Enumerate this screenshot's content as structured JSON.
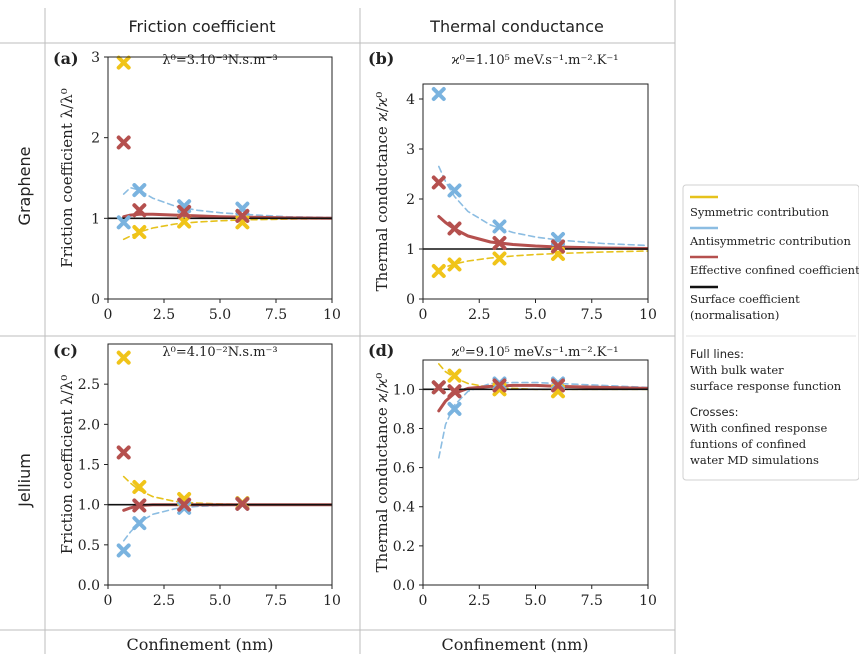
{
  "headers": {
    "columns": [
      "Friction coefficient",
      "Thermal conductance"
    ],
    "rows": [
      "Graphene",
      "Jellium"
    ],
    "xlabel": "Confinement (nm)"
  },
  "colors": {
    "symmetric": "#e6c21c",
    "antisymmetric": "#8cbde2",
    "effective": "#b5504e",
    "surface": "#111111",
    "cross_sym": "#f0c419",
    "cross_anti": "#7ab3df",
    "cross_eff": "#b5504e"
  },
  "legend": {
    "items": [
      {
        "label": "Symmetric contribution",
        "color": "#e6c21c"
      },
      {
        "label": "Antisymmetric contribution",
        "color": "#8cbde2"
      },
      {
        "label": "Effective confined coefficient",
        "color": "#b5504e"
      },
      {
        "label": "Surface coefficient",
        "label2": "(normalisation)",
        "color": "#111111"
      }
    ],
    "full_lines_title": "Full lines:",
    "full_lines_text": [
      "With bulk water",
      "surface response function"
    ],
    "crosses_title": "Crosses:",
    "crosses_text": [
      "With confined response",
      "funtions of confined",
      "water MD simulations"
    ]
  },
  "chart_data": [
    {
      "panel": "(a)",
      "type": "line",
      "title": "λ⁰=3.10⁻³N.s.m⁻³",
      "xlabel": "",
      "ylabel": "Friction coefficient λ/λ⁰",
      "xlim": [
        0,
        10
      ],
      "ylim": [
        0,
        3
      ],
      "xticks": [
        0,
        2.5,
        5,
        7.5,
        10
      ],
      "xticklabels": [
        "0",
        "2.5",
        "5.0",
        "7.5",
        "10"
      ],
      "yticks": [
        0,
        1,
        2,
        3
      ],
      "yticklabels": [
        "0",
        "1",
        "2",
        "3"
      ],
      "series": [
        {
          "name": "Symmetric contribution",
          "color": "#e6c21c",
          "style": "dashed",
          "x": [
            0.7,
            1.0,
            1.4,
            2.0,
            3.0,
            4.0,
            5.0,
            6.0,
            8.0,
            10.0
          ],
          "y": [
            0.74,
            0.78,
            0.83,
            0.88,
            0.93,
            0.955,
            0.97,
            0.98,
            0.99,
            0.995
          ]
        },
        {
          "name": "Antisymmetric contribution",
          "color": "#8cbde2",
          "style": "dashed",
          "x": [
            0.7,
            1.0,
            1.4,
            2.0,
            3.0,
            4.0,
            5.0,
            6.0,
            8.0,
            10.0
          ],
          "y": [
            1.3,
            1.38,
            1.35,
            1.25,
            1.15,
            1.1,
            1.07,
            1.05,
            1.02,
            1.01
          ]
        },
        {
          "name": "Effective confined coefficient",
          "color": "#b5504e",
          "style": "solid",
          "x": [
            0.7,
            1.0,
            1.4,
            2.0,
            3.0,
            4.0,
            5.0,
            6.0,
            8.0,
            10.0
          ],
          "y": [
            1.02,
            1.04,
            1.05,
            1.05,
            1.04,
            1.03,
            1.02,
            1.015,
            1.005,
            1.0
          ]
        },
        {
          "name": "Surface coefficient",
          "color": "#111111",
          "style": "solid",
          "x": [
            0,
            10
          ],
          "y": [
            1,
            1
          ]
        }
      ],
      "crosses": [
        {
          "color": "#f0c419",
          "x": [
            0.7,
            1.4,
            3.4,
            6.0
          ],
          "y": [
            2.93,
            0.83,
            0.96,
            0.95
          ]
        },
        {
          "color": "#7ab3df",
          "x": [
            0.7,
            1.4,
            3.4,
            6.0
          ],
          "y": [
            0.95,
            1.35,
            1.15,
            1.12
          ]
        },
        {
          "color": "#b5504e",
          "x": [
            0.7,
            1.4,
            3.4,
            6.0
          ],
          "y": [
            1.94,
            1.1,
            1.08,
            1.03
          ]
        }
      ]
    },
    {
      "panel": "(b)",
      "type": "line",
      "title": "ϰ⁰=1.10⁵ meV.s⁻¹.m⁻².K⁻¹",
      "xlabel": "",
      "ylabel": "Thermal conductance ϰ/ϰ⁰",
      "xlim": [
        0,
        10
      ],
      "ylim": [
        0,
        4.3
      ],
      "xticks": [
        0,
        2.5,
        5,
        7.5,
        10
      ],
      "xticklabels": [
        "0",
        "2.5",
        "5.0",
        "7.5",
        "10"
      ],
      "yticks": [
        0,
        1,
        2,
        3,
        4
      ],
      "yticklabels": [
        "0",
        "1",
        "2",
        "3",
        "4"
      ],
      "series": [
        {
          "name": "Symmetric contribution",
          "color": "#e6c21c",
          "style": "dashed",
          "x": [
            0.7,
            1.0,
            1.4,
            2.0,
            3.0,
            4.0,
            5.0,
            6.0,
            8.0,
            10.0
          ],
          "y": [
            0.58,
            0.64,
            0.7,
            0.76,
            0.82,
            0.86,
            0.89,
            0.91,
            0.94,
            0.96
          ]
        },
        {
          "name": "Antisymmetric contribution",
          "color": "#8cbde2",
          "style": "dashed",
          "x": [
            0.7,
            1.0,
            1.4,
            2.0,
            3.0,
            4.0,
            5.0,
            6.0,
            8.0,
            10.0
          ],
          "y": [
            2.65,
            2.35,
            2.05,
            1.75,
            1.48,
            1.33,
            1.24,
            1.18,
            1.11,
            1.07
          ]
        },
        {
          "name": "Effective confined coefficient",
          "color": "#b5504e",
          "style": "solid",
          "x": [
            0.7,
            1.0,
            1.4,
            2.0,
            3.0,
            4.0,
            5.0,
            6.0,
            8.0,
            10.0
          ],
          "y": [
            1.65,
            1.53,
            1.4,
            1.26,
            1.14,
            1.09,
            1.06,
            1.04,
            1.02,
            1.01
          ]
        },
        {
          "name": "Surface coefficient",
          "color": "#111111",
          "style": "solid",
          "x": [
            0,
            10
          ],
          "y": [
            1,
            1
          ]
        }
      ],
      "crosses": [
        {
          "color": "#f0c419",
          "x": [
            0.7,
            1.4,
            3.4,
            6.0
          ],
          "y": [
            0.56,
            0.69,
            0.81,
            0.9
          ]
        },
        {
          "color": "#7ab3df",
          "x": [
            0.7,
            1.4,
            3.4,
            6.0
          ],
          "y": [
            4.1,
            2.17,
            1.45,
            1.2
          ]
        },
        {
          "color": "#b5504e",
          "x": [
            0.7,
            1.4,
            3.4,
            6.0
          ],
          "y": [
            2.33,
            1.41,
            1.12,
            1.05
          ]
        }
      ]
    },
    {
      "panel": "(c)",
      "type": "line",
      "title": "λ⁰=4.10⁻²N.s.m⁻³",
      "xlabel": "Confinement (nm)",
      "ylabel": "Friction coefficient λ/λ⁰",
      "xlim": [
        0,
        10
      ],
      "ylim": [
        0,
        3
      ],
      "xticks": [
        0,
        2.5,
        5,
        7.5,
        10
      ],
      "xticklabels": [
        "0",
        "2.5",
        "5.0",
        "7.5",
        "10"
      ],
      "yticks": [
        0,
        0.5,
        1.0,
        1.5,
        2.0,
        2.5
      ],
      "yticklabels": [
        "0.0",
        "0.5",
        "1.0",
        "1.5",
        "2.0",
        "2.5"
      ],
      "series": [
        {
          "name": "Symmetric contribution",
          "color": "#e6c21c",
          "style": "dashed",
          "x": [
            0.7,
            1.0,
            1.4,
            2.0,
            3.0,
            4.0,
            5.0,
            6.0,
            8.0,
            10.0
          ],
          "y": [
            1.35,
            1.27,
            1.18,
            1.1,
            1.04,
            1.02,
            1.01,
            1.005,
            1.0,
            1.0
          ]
        },
        {
          "name": "Antisymmetric contribution",
          "color": "#8cbde2",
          "style": "dashed",
          "x": [
            0.7,
            1.0,
            1.4,
            2.0,
            3.0,
            4.0,
            5.0,
            6.0,
            8.0,
            10.0
          ],
          "y": [
            0.55,
            0.66,
            0.78,
            0.88,
            0.95,
            0.98,
            0.99,
            1.0,
            1.0,
            1.0
          ]
        },
        {
          "name": "Effective confined coefficient",
          "color": "#b5504e",
          "style": "solid",
          "x": [
            0.7,
            1.0,
            1.4,
            2.0,
            3.0,
            4.0,
            5.0,
            6.0,
            8.0,
            10.0
          ],
          "y": [
            0.93,
            0.96,
            0.99,
            1.0,
            1.0,
            1.0,
            1.0,
            1.0,
            1.0,
            1.0
          ]
        },
        {
          "name": "Surface coefficient",
          "color": "#111111",
          "style": "solid",
          "x": [
            0,
            10
          ],
          "y": [
            1,
            1
          ]
        }
      ],
      "crosses": [
        {
          "color": "#f0c419",
          "x": [
            0.7,
            1.4,
            3.4,
            6.0
          ],
          "y": [
            2.83,
            1.22,
            1.07,
            1.02
          ]
        },
        {
          "color": "#7ab3df",
          "x": [
            0.7,
            1.4,
            3.4,
            6.0
          ],
          "y": [
            0.43,
            0.77,
            0.96,
            1.01
          ]
        },
        {
          "color": "#b5504e",
          "x": [
            0.7,
            1.4,
            3.4,
            6.0
          ],
          "y": [
            1.65,
            0.99,
            1.0,
            1.01
          ]
        }
      ]
    },
    {
      "panel": "(d)",
      "type": "line",
      "title": "ϰ⁰=9.10⁵ meV.s⁻¹.m⁻².K⁻¹",
      "xlabel": "Confinement (nm)",
      "ylabel": "Thermal conductance ϰ/ϰ⁰",
      "xlim": [
        0,
        10
      ],
      "ylim": [
        0,
        1.15
      ],
      "xticks": [
        0,
        2.5,
        5,
        7.5,
        10
      ],
      "xticklabels": [
        "0",
        "2.5",
        "5.0",
        "7.5",
        "10"
      ],
      "yticks": [
        0,
        0.2,
        0.4,
        0.6,
        0.8,
        1.0
      ],
      "yticklabels": [
        "0.0",
        "0.2",
        "0.4",
        "0.6",
        "0.8",
        "1.0"
      ],
      "series": [
        {
          "name": "Symmetric contribution",
          "color": "#e6c21c",
          "style": "dashed",
          "x": [
            0.7,
            1.0,
            1.4,
            2.0,
            3.0,
            4.0,
            5.0,
            6.0,
            8.0,
            10.0
          ],
          "y": [
            1.13,
            1.09,
            1.06,
            1.03,
            1.01,
            1.005,
            1.0,
            1.0,
            1.0,
            1.0
          ]
        },
        {
          "name": "Antisymmetric contribution",
          "color": "#8cbde2",
          "style": "dashed",
          "x": [
            0.7,
            1.0,
            1.4,
            2.0,
            3.0,
            4.0,
            5.0,
            6.0,
            8.0,
            10.0
          ],
          "y": [
            0.65,
            0.82,
            0.92,
            0.99,
            1.03,
            1.035,
            1.035,
            1.03,
            1.02,
            1.01
          ]
        },
        {
          "name": "Effective confined coefficient",
          "color": "#b5504e",
          "style": "solid",
          "x": [
            0.7,
            1.0,
            1.4,
            2.0,
            3.0,
            4.0,
            5.0,
            6.0,
            8.0,
            10.0
          ],
          "y": [
            0.89,
            0.94,
            0.98,
            1.005,
            1.015,
            1.02,
            1.02,
            1.015,
            1.01,
            1.005
          ]
        },
        {
          "name": "Surface coefficient",
          "color": "#111111",
          "style": "solid",
          "x": [
            0,
            10
          ],
          "y": [
            1,
            1
          ]
        }
      ],
      "crosses": [
        {
          "color": "#f0c419",
          "x": [
            0.7,
            1.4,
            3.4,
            6.0
          ],
          "y": [
            1.01,
            1.07,
            1.0,
            0.99
          ]
        },
        {
          "color": "#7ab3df",
          "x": [
            0.7,
            1.4,
            3.4,
            6.0
          ],
          "y": [
            1.01,
            0.9,
            1.03,
            1.03
          ]
        },
        {
          "color": "#b5504e",
          "x": [
            0.7,
            1.4,
            3.4,
            6.0
          ],
          "y": [
            1.01,
            0.99,
            1.02,
            1.02
          ]
        }
      ]
    }
  ]
}
